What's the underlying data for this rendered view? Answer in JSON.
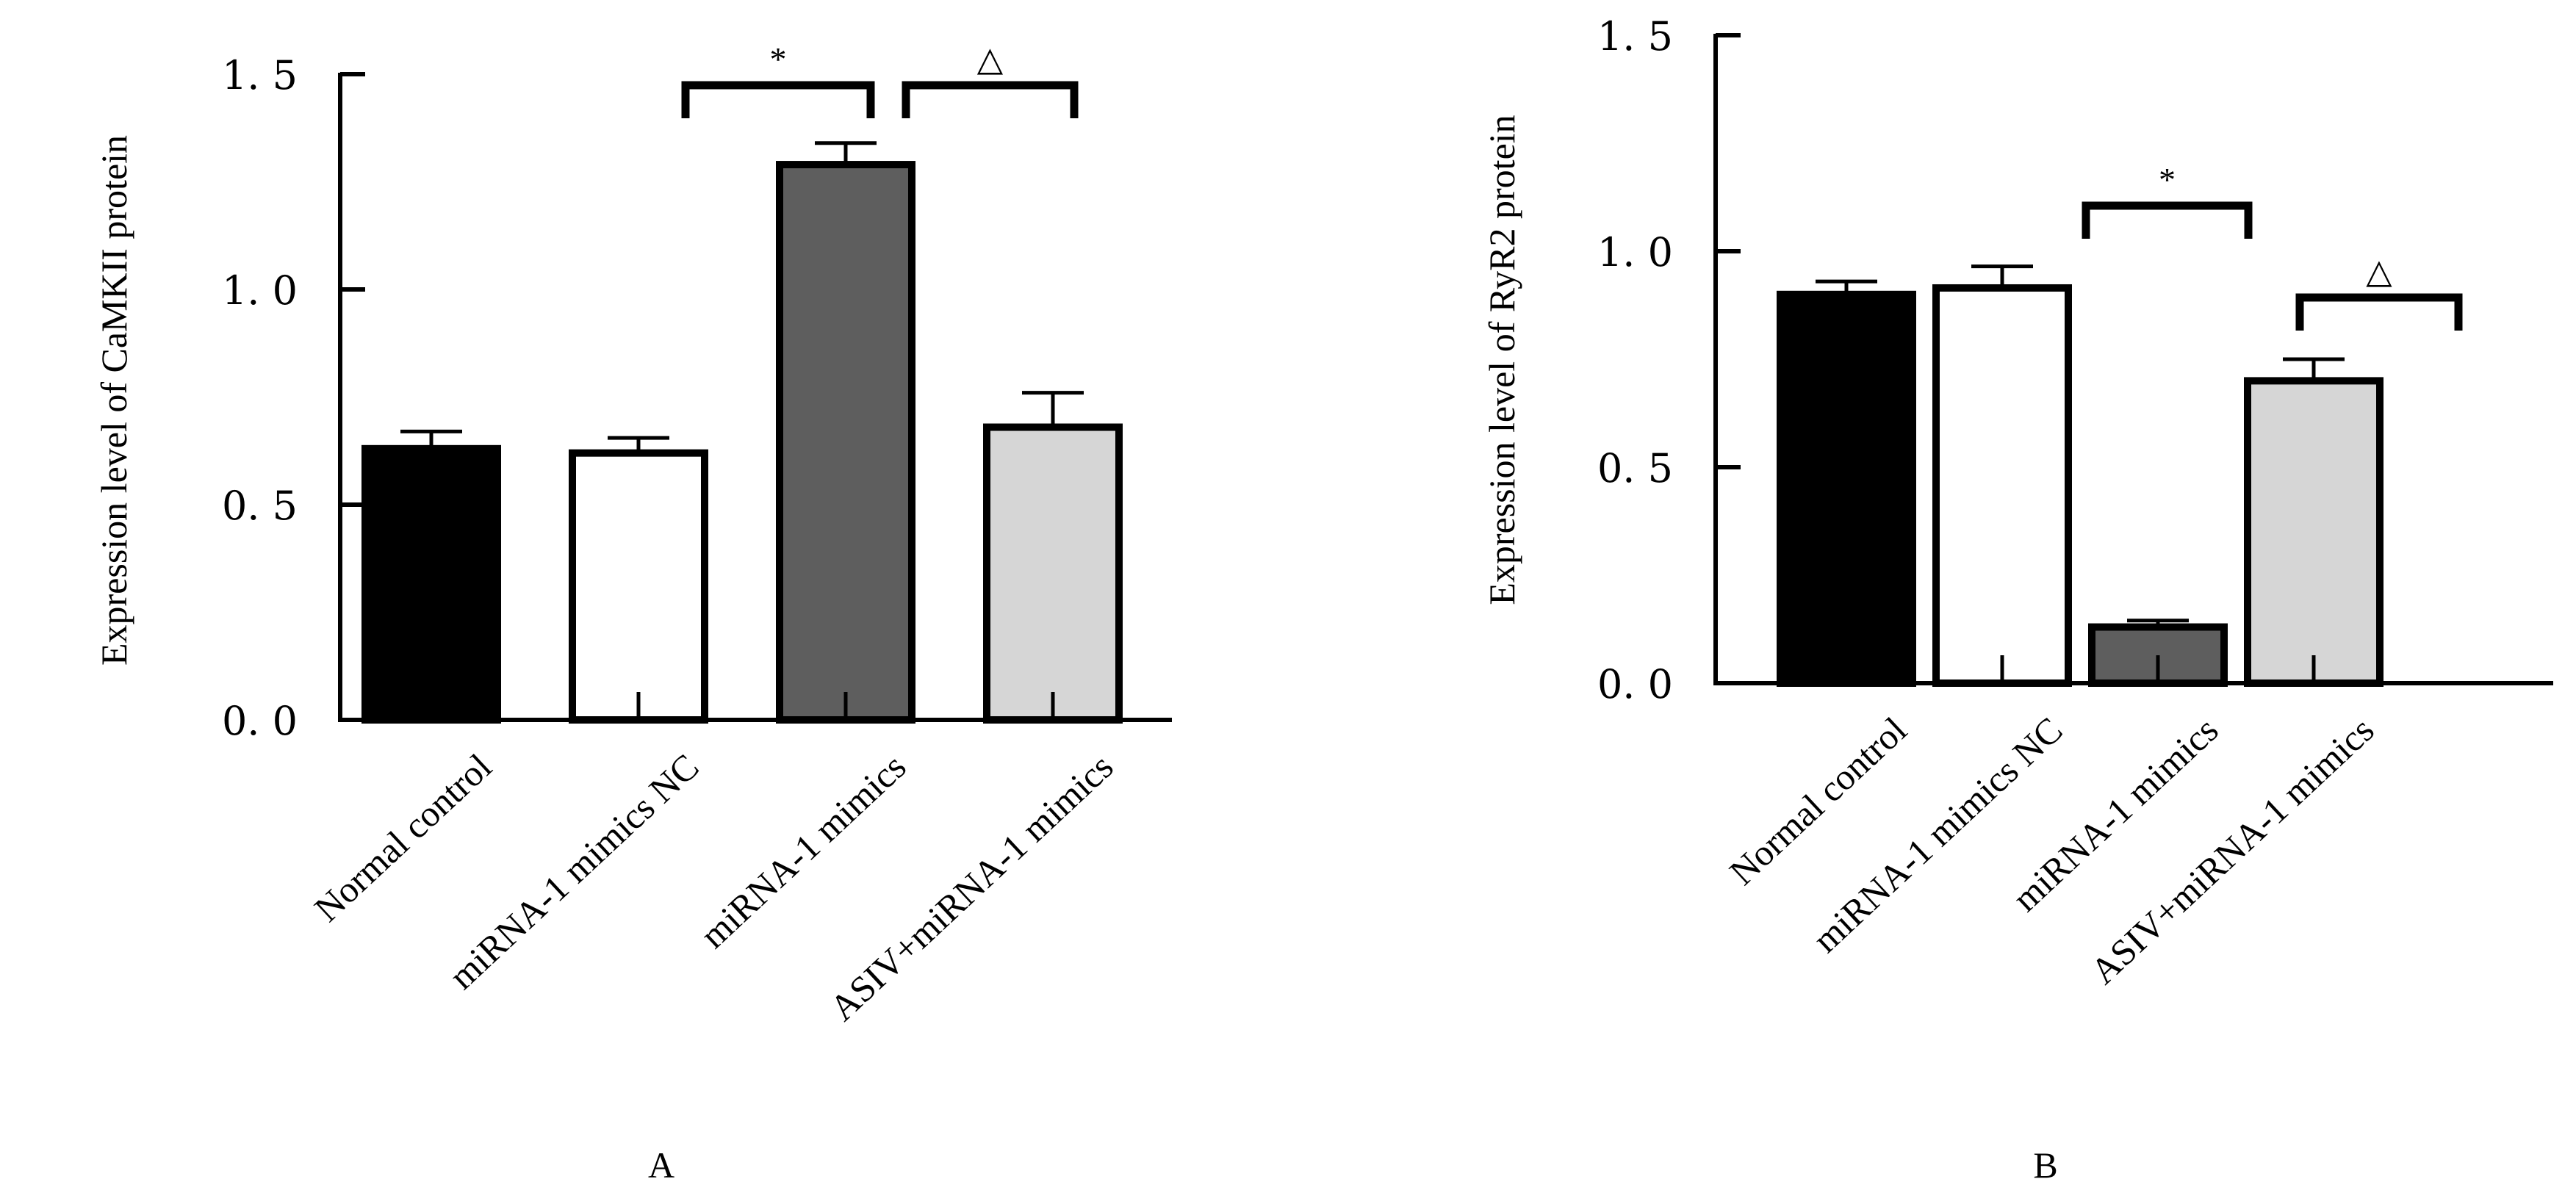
{
  "chart_data": [
    {
      "panel": "A",
      "type": "bar",
      "ylabel": "Expression level of CaMKII protein",
      "ylim": [
        0,
        1.5
      ],
      "yticks": [
        "0. 0",
        "0. 5",
        "1. 0",
        "1. 5"
      ],
      "categories": [
        "Normal control",
        "miRNA-1 mimics NC",
        "miRNA-1 mimics",
        "ASIV+miRNA-1 mimics"
      ],
      "values": [
        0.63,
        0.62,
        1.29,
        0.68
      ],
      "errors": [
        0.04,
        0.035,
        0.05,
        0.08
      ],
      "colors": [
        "#000000",
        "#ffffff",
        "#5e5e5e",
        "#d6d6d6"
      ],
      "significance": [
        {
          "from": 1,
          "to": 2,
          "symbol": "*"
        },
        {
          "from": 2,
          "to": 3,
          "symbol": "△"
        }
      ]
    },
    {
      "panel": "B",
      "type": "bar",
      "ylabel": "Expression level of RyR2 protein",
      "ylim": [
        0,
        1.5
      ],
      "yticks": [
        "0. 0",
        "0. 5",
        "1. 0",
        "1. 5"
      ],
      "categories": [
        "Normal control",
        "miRNA-1 mimics NC",
        "miRNA-1 mimics",
        "ASIV+miRNA-1 mimics"
      ],
      "values": [
        0.9,
        0.915,
        0.13,
        0.7
      ],
      "errors": [
        0.03,
        0.05,
        0.015,
        0.05
      ],
      "colors": [
        "#000000",
        "#ffffff",
        "#5e5e5e",
        "#d6d6d6"
      ],
      "significance": [
        {
          "from": 1,
          "to": 2,
          "symbol": "*"
        },
        {
          "from": 2,
          "to": 3,
          "symbol": "△"
        }
      ]
    }
  ]
}
